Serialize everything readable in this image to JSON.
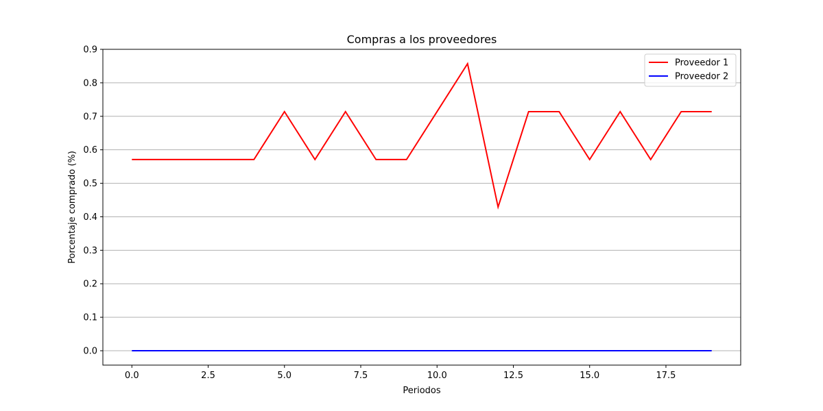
{
  "chart_data": {
    "type": "line",
    "title": "Compras a los proveedores",
    "xlabel": "Periodos",
    "ylabel": "Porcentaje comprado (%)",
    "xlim": [
      -0.95,
      19.95
    ],
    "ylim": [
      -0.0429,
      0.9
    ],
    "xticks": [
      0.0,
      2.5,
      5.0,
      7.5,
      10.0,
      12.5,
      15.0,
      17.5
    ],
    "xtick_labels": [
      "0.0",
      "2.5",
      "5.0",
      "7.5",
      "10.0",
      "12.5",
      "15.0",
      "17.5"
    ],
    "yticks": [
      0.0,
      0.1,
      0.2,
      0.3,
      0.4,
      0.5,
      0.6,
      0.7,
      0.8,
      0.9
    ],
    "ytick_labels": [
      "0.0",
      "0.1",
      "0.2",
      "0.3",
      "0.4",
      "0.5",
      "0.6",
      "0.7",
      "0.8",
      "0.9"
    ],
    "grid": "y",
    "legend_position": "top-right",
    "x": [
      0,
      1,
      2,
      3,
      4,
      5,
      6,
      7,
      8,
      9,
      10,
      11,
      12,
      13,
      14,
      15,
      16,
      17,
      18,
      19
    ],
    "series": [
      {
        "name": "Proveedor 1",
        "color": "#ff0000",
        "values": [
          0.571,
          0.571,
          0.571,
          0.571,
          0.571,
          0.714,
          0.571,
          0.714,
          0.571,
          0.571,
          0.714,
          0.857,
          0.429,
          0.714,
          0.714,
          0.571,
          0.714,
          0.571,
          0.714,
          0.714
        ]
      },
      {
        "name": "Proveedor 2",
        "color": "#0000ff",
        "values": [
          0,
          0,
          0,
          0,
          0,
          0,
          0,
          0,
          0,
          0,
          0,
          0,
          0,
          0,
          0,
          0,
          0,
          0,
          0,
          0
        ]
      }
    ]
  }
}
